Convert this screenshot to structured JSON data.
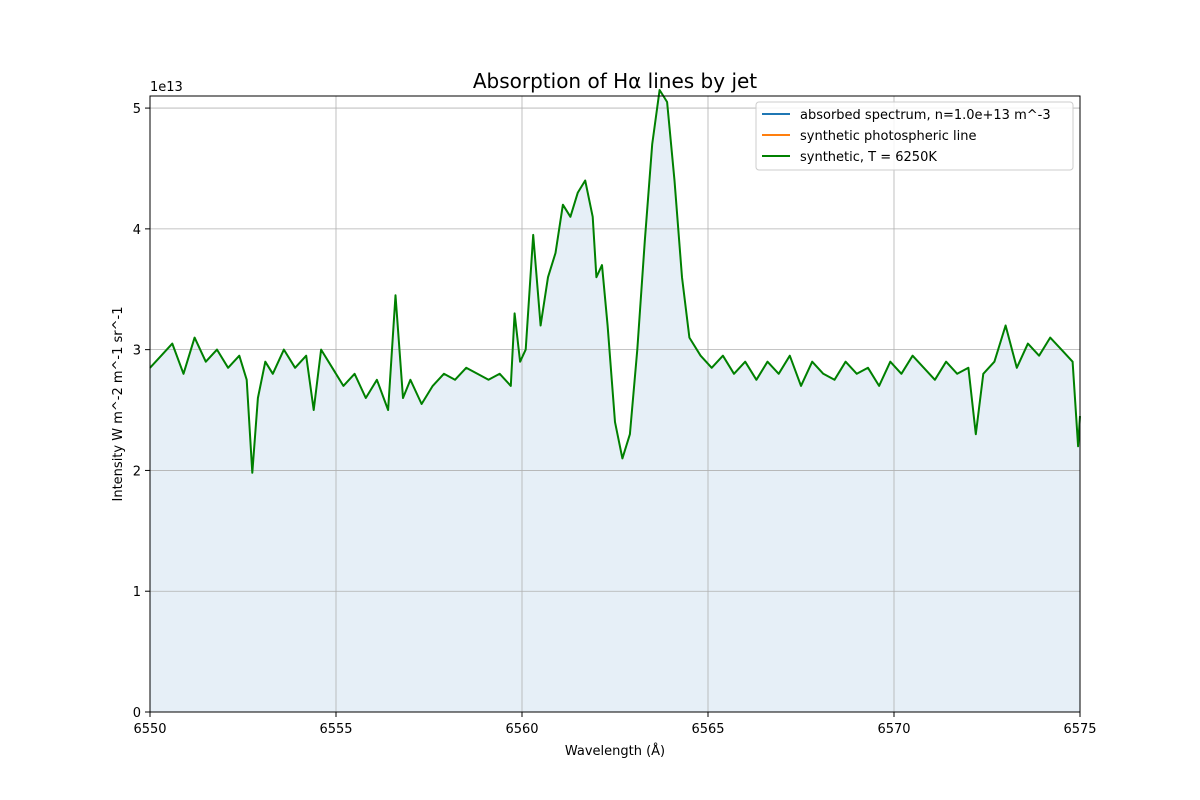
{
  "chart_data": {
    "type": "line",
    "title": "Absorption of Hα lines by jet",
    "xlabel": "Wavelength (Å)",
    "ylabel": "Intensity W m^-2 m^-1 sr^-1",
    "y_offset_label": "1e13",
    "y_scale_factor": 10000000000000.0,
    "xlim": [
      6550,
      6575
    ],
    "ylim": [
      0,
      5.1
    ],
    "x_ticks": [
      6550,
      6555,
      6560,
      6565,
      6570,
      6575
    ],
    "x_tick_labels": [
      "6550",
      "6555",
      "6560",
      "6565",
      "6570",
      "6575"
    ],
    "y_ticks": [
      0,
      1,
      2,
      3,
      4,
      5
    ],
    "y_tick_labels": [
      "0",
      "1",
      "2",
      "3",
      "4",
      "5"
    ],
    "grid": true,
    "legend_position": "top-right",
    "fill_under_curve": true,
    "fill_color": "#e6eff7",
    "series": [
      {
        "name": "absorbed spectrum, n=1.0e+13 m^-3",
        "color": "#1f77b4",
        "values": []
      },
      {
        "name": "synthetic photospheric line",
        "color": "#ff7f0e",
        "values": []
      },
      {
        "name": "synthetic, T = 6250K",
        "color": "#008000",
        "x": [
          6550.0,
          6550.3,
          6550.6,
          6550.9,
          6551.2,
          6551.5,
          6551.8,
          6552.1,
          6552.4,
          6552.6,
          6552.75,
          6552.9,
          6553.1,
          6553.3,
          6553.6,
          6553.9,
          6554.2,
          6554.4,
          6554.6,
          6554.9,
          6555.2,
          6555.5,
          6555.8,
          6556.1,
          6556.4,
          6556.6,
          6556.8,
          6557.0,
          6557.3,
          6557.6,
          6557.9,
          6558.2,
          6558.5,
          6558.8,
          6559.1,
          6559.4,
          6559.7,
          6559.8,
          6559.95,
          6560.1,
          6560.3,
          6560.5,
          6560.7,
          6560.9,
          6561.1,
          6561.3,
          6561.5,
          6561.7,
          6561.9,
          6562.0,
          6562.15,
          6562.3,
          6562.5,
          6562.7,
          6562.9,
          6563.1,
          6563.3,
          6563.5,
          6563.7,
          6563.9,
          6564.1,
          6564.3,
          6564.5,
          6564.8,
          6565.1,
          6565.4,
          6565.7,
          6566.0,
          6566.3,
          6566.6,
          6566.9,
          6567.2,
          6567.5,
          6567.8,
          6568.1,
          6568.4,
          6568.7,
          6569.0,
          6569.3,
          6569.6,
          6569.9,
          6570.2,
          6570.5,
          6570.8,
          6571.1,
          6571.4,
          6571.7,
          6572.0,
          6572.2,
          6572.4,
          6572.7,
          6573.0,
          6573.3,
          6573.6,
          6573.9,
          6574.2,
          6574.5,
          6574.8,
          6574.95,
          6575.0
        ],
        "values": [
          2.85,
          2.95,
          3.05,
          2.8,
          3.1,
          2.9,
          3.0,
          2.85,
          2.95,
          2.75,
          1.98,
          2.6,
          2.9,
          2.8,
          3.0,
          2.85,
          2.95,
          2.5,
          3.0,
          2.85,
          2.7,
          2.8,
          2.6,
          2.75,
          2.5,
          3.45,
          2.6,
          2.75,
          2.55,
          2.7,
          2.8,
          2.75,
          2.85,
          2.8,
          2.75,
          2.8,
          2.7,
          3.3,
          2.9,
          3.0,
          3.95,
          3.2,
          3.6,
          3.8,
          4.2,
          4.1,
          4.3,
          4.4,
          4.1,
          3.6,
          3.7,
          3.2,
          2.4,
          2.1,
          2.3,
          3.0,
          3.9,
          4.7,
          5.2,
          5.05,
          4.4,
          3.6,
          3.1,
          2.95,
          2.85,
          2.95,
          2.8,
          2.9,
          2.75,
          2.9,
          2.8,
          2.95,
          2.7,
          2.9,
          2.8,
          2.75,
          2.9,
          2.8,
          2.85,
          2.7,
          2.9,
          2.8,
          2.95,
          2.85,
          2.75,
          2.9,
          2.8,
          2.85,
          2.3,
          2.8,
          2.9,
          3.2,
          2.85,
          3.05,
          2.95,
          3.1,
          3.0,
          2.9,
          2.2,
          2.45
        ]
      }
    ]
  }
}
